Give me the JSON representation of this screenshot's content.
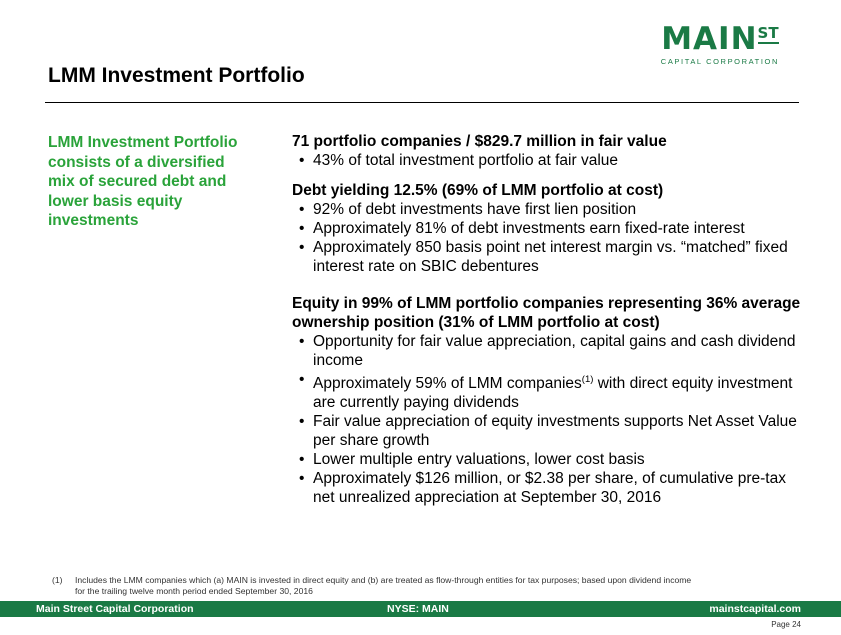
{
  "logo": {
    "main": "MAIN",
    "sup": "ST",
    "sub": "CAPITAL CORPORATION"
  },
  "title": "LMM Investment Portfolio",
  "callout": "LMM Investment Portfolio consists of a diversified mix of secured debt and lower basis equity investments",
  "sections": [
    {
      "heading": "71 portfolio companies / $829.7 million in fair value",
      "bullets": [
        "43% of total investment portfolio at fair value"
      ]
    },
    {
      "heading": "Debt yielding 12.5% (69% of LMM portfolio at cost)",
      "bullets": [
        "92% of debt investments have first lien position",
        "Approximately 81% of debt investments earn fixed-rate interest",
        "Approximately 850 basis point net interest margin vs. “matched” fixed interest rate on SBIC debentures"
      ]
    },
    {
      "heading": "Equity in 99% of LMM portfolio companies representing 36% average ownership position (31% of LMM portfolio at cost)",
      "bullets": [
        "Opportunity for fair value appreciation, capital gains and cash dividend income",
        "Approximately 59% of LMM companies",
        "Fair value appreciation of equity investments supports Net Asset Value per share growth",
        "Lower multiple entry valuations, lower cost basis",
        "Approximately $126 million, or $2.38 per share, of cumulative pre-tax net unrealized appreciation at September 30, 2016"
      ],
      "bullet_sup": "(1)",
      "bullet_tail": " with direct equity investment are currently paying dividends"
    }
  ],
  "footnote": {
    "num": "(1)",
    "text": "Includes the LMM companies which (a) MAIN is invested in direct equity and (b) are treated as flow-through entities for tax purposes; based upon dividend income for the trailing twelve month period ended September 30, 2016"
  },
  "footer": {
    "left": "Main Street Capital Corporation",
    "center": "NYSE: MAIN",
    "right": "mainstcapital.com"
  },
  "page": "Page 24",
  "colors": {
    "brand_green": "#1a7a45",
    "callout_green": "#2aa33a"
  }
}
